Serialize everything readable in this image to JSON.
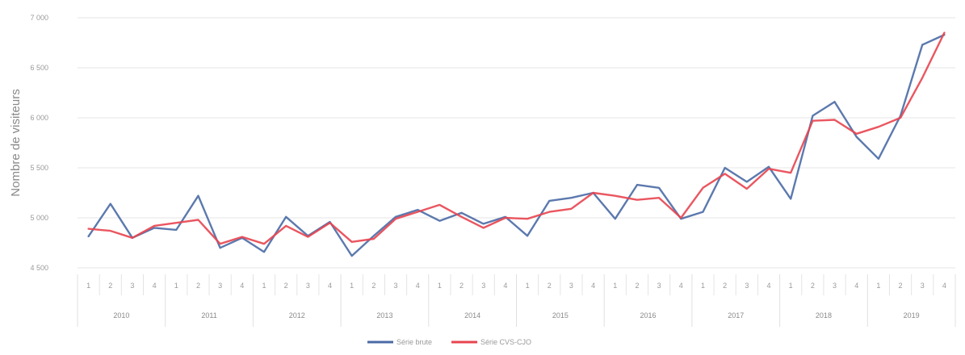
{
  "chart_data": {
    "type": "line",
    "ylabel": "Nombre de visiteurs",
    "ylim": [
      4500,
      7000
    ],
    "yticks": [
      4500,
      5000,
      5500,
      6000,
      6500,
      7000
    ],
    "ytick_labels": [
      "4 500",
      "5 000",
      "5 500",
      "6 000",
      "6 500",
      "7 000"
    ],
    "grid": true,
    "legend_position": "bottom",
    "years": [
      "2010",
      "2011",
      "2012",
      "2013",
      "2014",
      "2015",
      "2016",
      "2017",
      "2018",
      "2019"
    ],
    "quarters": [
      "1",
      "2",
      "3",
      "4"
    ],
    "series": [
      {
        "name": "Série brute",
        "color": "#4a6aa5",
        "values": [
          4815,
          5140,
          4800,
          4900,
          4880,
          5220,
          4700,
          4800,
          4660,
          5010,
          4820,
          4960,
          4620,
          4820,
          5010,
          5080,
          4970,
          5050,
          4940,
          5010,
          4820,
          5170,
          5200,
          5250,
          4990,
          5330,
          5300,
          4990,
          5060,
          5500,
          5360,
          5510,
          5190,
          6020,
          6160,
          5810,
          5590,
          6020,
          6730,
          6830
        ]
      },
      {
        "name": "Série CVS-CJO",
        "color": "#e8444f",
        "values": [
          4890,
          4870,
          4800,
          4920,
          4950,
          4980,
          4740,
          4810,
          4740,
          4920,
          4810,
          4950,
          4760,
          4790,
          4990,
          5060,
          5130,
          5010,
          4900,
          5000,
          4990,
          5060,
          5090,
          5250,
          5220,
          5180,
          5200,
          5000,
          5300,
          5440,
          5290,
          5490,
          5450,
          5970,
          5980,
          5840,
          5910,
          6000,
          6400,
          6850
        ]
      }
    ]
  }
}
